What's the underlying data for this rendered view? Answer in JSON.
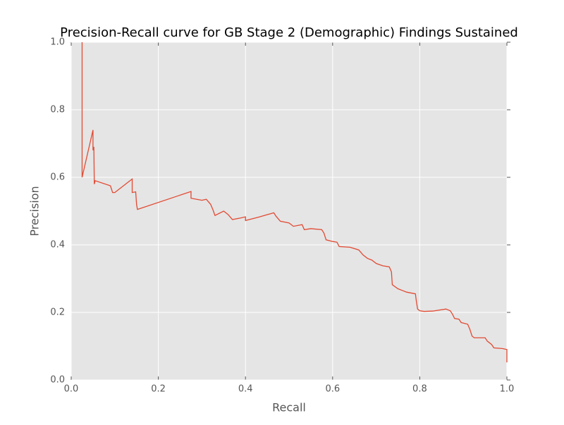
{
  "chart_data": {
    "type": "line",
    "title": "Precision-Recall curve for GB Stage 2 (Demographic) Findings Sustained",
    "x_label": "Recall",
    "y_label": "Precision",
    "color": "#e24a33",
    "grid": true,
    "xlim": [
      0,
      1
    ],
    "ylim": [
      0,
      1
    ],
    "xticks": [
      {
        "value": 0,
        "label": "0.0"
      },
      0.2,
      0.4,
      0.6,
      0.8,
      {
        "value": 1,
        "label": "1.0"
      }
    ],
    "yticks": [
      {
        "value": 0,
        "label": "0.0"
      },
      0.2,
      0.4,
      0.6,
      0.8,
      {
        "value": 1,
        "label": "1.0"
      }
    ],
    "x": [
      0.025,
      0.025,
      0.05,
      0.05,
      0.052,
      0.053,
      0.055,
      0.09,
      0.095,
      0.1,
      0.14,
      0.14,
      0.148,
      0.15,
      0.152,
      0.275,
      0.275,
      0.3,
      0.31,
      0.32,
      0.325,
      0.33,
      0.35,
      0.36,
      0.37,
      0.39,
      0.4,
      0.4,
      0.43,
      0.465,
      0.47,
      0.48,
      0.5,
      0.51,
      0.53,
      0.535,
      0.55,
      0.575,
      0.58,
      0.585,
      0.6,
      0.61,
      0.615,
      0.64,
      0.66,
      0.67,
      0.68,
      0.69,
      0.7,
      0.715,
      0.73,
      0.735,
      0.737,
      0.75,
      0.76,
      0.77,
      0.79,
      0.792,
      0.795,
      0.8,
      0.81,
      0.83,
      0.86,
      0.87,
      0.875,
      0.88,
      0.89,
      0.895,
      0.91,
      0.915,
      0.92,
      0.925,
      0.95,
      0.955,
      0.965,
      0.97,
      0.99,
      1.0,
      1.0
    ],
    "values": [
      1.0,
      0.6,
      0.74,
      0.68,
      0.69,
      0.58,
      0.59,
      0.575,
      0.555,
      0.555,
      0.595,
      0.555,
      0.557,
      0.52,
      0.505,
      0.558,
      0.538,
      0.532,
      0.535,
      0.52,
      0.505,
      0.487,
      0.5,
      0.49,
      0.475,
      0.48,
      0.483,
      0.472,
      0.482,
      0.495,
      0.485,
      0.47,
      0.465,
      0.455,
      0.46,
      0.445,
      0.448,
      0.445,
      0.435,
      0.415,
      0.41,
      0.408,
      0.395,
      0.393,
      0.385,
      0.37,
      0.36,
      0.355,
      0.345,
      0.338,
      0.335,
      0.32,
      0.282,
      0.27,
      0.265,
      0.26,
      0.255,
      0.235,
      0.21,
      0.205,
      0.203,
      0.204,
      0.21,
      0.205,
      0.195,
      0.182,
      0.18,
      0.17,
      0.165,
      0.15,
      0.13,
      0.125,
      0.125,
      0.115,
      0.105,
      0.095,
      0.093,
      0.09,
      0.052
    ]
  }
}
